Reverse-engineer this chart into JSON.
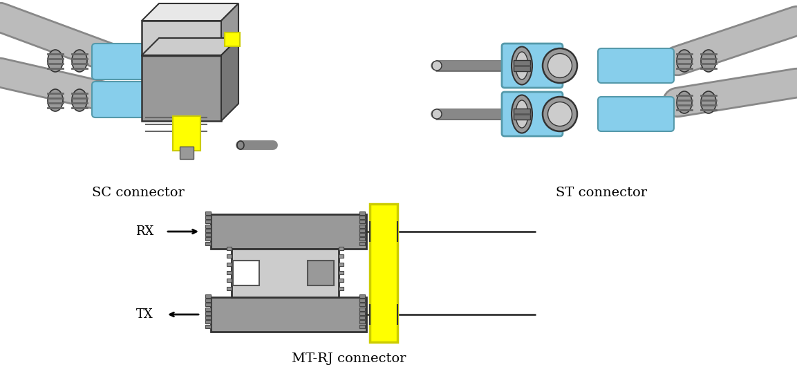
{
  "background_color": "#ffffff",
  "labels": {
    "sc": "SC connector",
    "st": "ST connector",
    "mtrj": "MT-RJ connector",
    "rx": "RX",
    "tx": "TX"
  },
  "colors": {
    "gray_dark": "#555555",
    "gray_med": "#888888",
    "gray_body": "#999999",
    "gray_light": "#bbbbbb",
    "gray_cable": "#aaaaaa",
    "gray_lighter": "#cccccc",
    "gray_lightest": "#dddddd",
    "blue": "#87ceeb",
    "blue_dark": "#5599aa",
    "yellow": "#ffff00",
    "yellow_dark": "#cccc00",
    "white": "#ffffff",
    "black": "#000000",
    "outline": "#333333"
  },
  "figsize": [
    11.53,
    5.44
  ],
  "dpi": 100
}
